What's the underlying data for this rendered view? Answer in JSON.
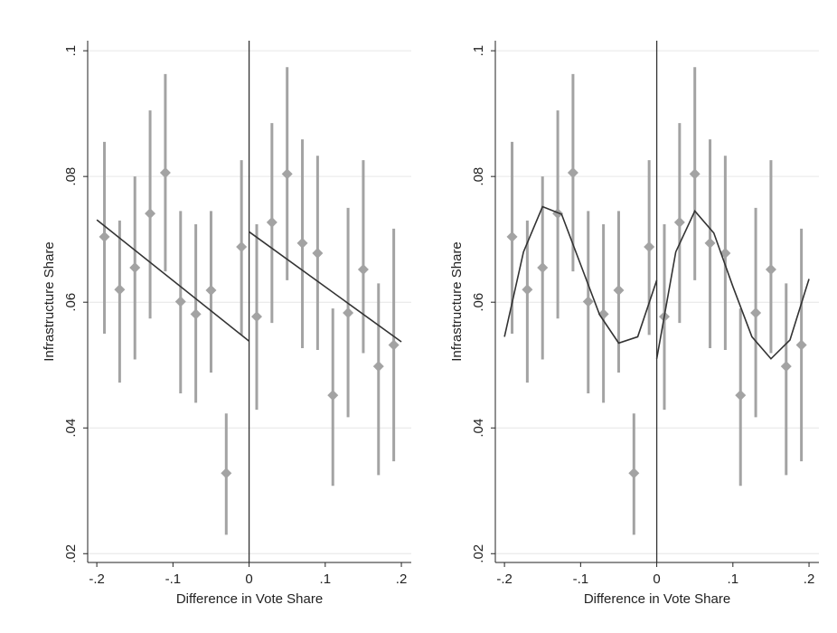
{
  "chart_data": [
    {
      "type": "scatter",
      "xlabel": "Difference in Vote Share",
      "ylabel": "Infrastructure Share",
      "x": [
        -0.19,
        -0.17,
        -0.15,
        -0.13,
        -0.11,
        -0.09,
        -0.07,
        -0.05,
        -0.03,
        -0.01,
        0.01,
        0.03,
        0.05,
        0.07,
        0.09,
        0.11,
        0.13,
        0.15,
        0.17,
        0.19
      ],
      "values": [
        0.0704,
        0.062,
        0.0655,
        0.0741,
        0.0806,
        0.0601,
        0.0581,
        0.0619,
        0.0328,
        0.0688,
        0.0577,
        0.0727,
        0.0804,
        0.0694,
        0.0678,
        0.0452,
        0.0583,
        0.0652,
        0.0498,
        0.0532
      ],
      "ci_low": [
        0.055,
        0.0472,
        0.0509,
        0.0574,
        0.0649,
        0.0455,
        0.044,
        0.0488,
        0.023,
        0.0548,
        0.0429,
        0.0567,
        0.0635,
        0.0527,
        0.0524,
        0.0308,
        0.0417,
        0.0519,
        0.0325,
        0.0347
      ],
      "ci_high": [
        0.0855,
        0.073,
        0.08,
        0.0905,
        0.0963,
        0.0745,
        0.0724,
        0.0745,
        0.0423,
        0.0826,
        0.0724,
        0.0885,
        0.0974,
        0.0859,
        0.0833,
        0.059,
        0.075,
        0.0826,
        0.063,
        0.0717
      ],
      "color": "#a3a3a3",
      "fit_color": "#333333",
      "fit": [
        {
          "x": [
            -0.2,
            0
          ],
          "values": [
            0.0731,
            0.0538
          ]
        },
        {
          "x": [
            0,
            0.2
          ],
          "values": [
            0.0712,
            0.0537
          ]
        }
      ],
      "cutoff": 0,
      "xlim": [
        -0.212,
        0.213
      ],
      "ylim": [
        0.0186,
        0.1016
      ],
      "xticks": [
        {
          "value": -0.2,
          "label": "-.2"
        },
        {
          "value": -0.1,
          "label": "-.1"
        },
        0,
        {
          "value": 0.1,
          "label": ".1"
        },
        {
          "value": 0.2,
          "label": ".2"
        }
      ],
      "yticks": [
        {
          "value": 0.02,
          "label": ".02"
        },
        {
          "value": 0.04,
          "label": ".04"
        },
        {
          "value": 0.06,
          "label": ".06"
        },
        {
          "value": 0.08,
          "label": ".08"
        },
        {
          "value": 0.1,
          "label": ".1"
        }
      ],
      "grid": true
    },
    {
      "type": "scatter",
      "xlabel": "Difference in Vote Share",
      "ylabel": "Infrastructure Share",
      "x": [
        -0.19,
        -0.17,
        -0.15,
        -0.13,
        -0.11,
        -0.09,
        -0.07,
        -0.05,
        -0.03,
        -0.01,
        0.01,
        0.03,
        0.05,
        0.07,
        0.09,
        0.11,
        0.13,
        0.15,
        0.17,
        0.19
      ],
      "values": [
        0.0704,
        0.062,
        0.0655,
        0.0741,
        0.0806,
        0.0601,
        0.0581,
        0.0619,
        0.0328,
        0.0688,
        0.0577,
        0.0727,
        0.0804,
        0.0694,
        0.0678,
        0.0452,
        0.0583,
        0.0652,
        0.0498,
        0.0532
      ],
      "ci_low": [
        0.055,
        0.0472,
        0.0509,
        0.0574,
        0.0649,
        0.0455,
        0.044,
        0.0488,
        0.023,
        0.0548,
        0.0429,
        0.0567,
        0.0635,
        0.0527,
        0.0524,
        0.0308,
        0.0417,
        0.0519,
        0.0325,
        0.0347
      ],
      "ci_high": [
        0.0855,
        0.073,
        0.08,
        0.0905,
        0.0963,
        0.0745,
        0.0724,
        0.0745,
        0.0423,
        0.0826,
        0.0724,
        0.0885,
        0.0974,
        0.0859,
        0.0833,
        0.059,
        0.075,
        0.0826,
        0.063,
        0.0717
      ],
      "color": "#a3a3a3",
      "fit_color": "#333333",
      "fit": [
        {
          "x": [
            -0.2,
            -0.175,
            -0.15,
            -0.125,
            -0.1,
            -0.075,
            -0.05,
            -0.025,
            0
          ],
          "values": [
            0.0545,
            0.068,
            0.0752,
            0.074,
            0.066,
            0.058,
            0.0535,
            0.0545,
            0.0635
          ]
        },
        {
          "x": [
            0,
            0.025,
            0.05,
            0.075,
            0.1,
            0.125,
            0.15,
            0.175,
            0.2
          ],
          "values": [
            0.051,
            0.068,
            0.0745,
            0.071,
            0.0625,
            0.0545,
            0.051,
            0.054,
            0.0637
          ]
        }
      ],
      "cutoff": 0,
      "xlim": [
        -0.212,
        0.213
      ],
      "ylim": [
        0.0186,
        0.1016
      ],
      "xticks": [
        {
          "value": -0.2,
          "label": "-.2"
        },
        {
          "value": -0.1,
          "label": "-.1"
        },
        0,
        {
          "value": 0.1,
          "label": ".1"
        },
        {
          "value": 0.2,
          "label": ".2"
        }
      ],
      "yticks": [
        {
          "value": 0.02,
          "label": ".02"
        },
        {
          "value": 0.04,
          "label": ".04"
        },
        {
          "value": 0.06,
          "label": ".06"
        },
        {
          "value": 0.08,
          "label": ".08"
        },
        {
          "value": 0.1,
          "label": ".1"
        }
      ],
      "grid": true
    }
  ]
}
